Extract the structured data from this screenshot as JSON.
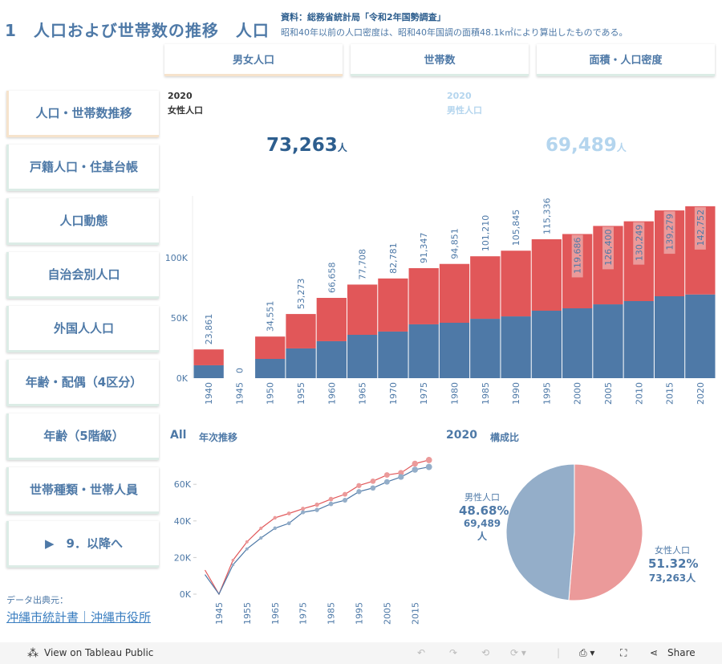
{
  "header": {
    "title": "1　人口および世帯数の推移　人口",
    "source": "資料：総務省統計局「令和2年国勢調査」",
    "note": "昭和40年以前の人口密度は、昭和40年国調の面積48.1k㎡により算出したものである。"
  },
  "tabs": [
    {
      "label": "男女人口",
      "active": true
    },
    {
      "label": "世帯数"
    },
    {
      "label": "面積・人口密度"
    }
  ],
  "nav": [
    {
      "label": "人口・世帯数推移",
      "active": true
    },
    {
      "label": "戸籍人口・住基台帳"
    },
    {
      "label": "人口動態"
    },
    {
      "label": "自治会別人口"
    },
    {
      "label": "外国人人口"
    },
    {
      "label": "年齢・配偶（4区分）"
    },
    {
      "label": "年齢（5階級）"
    },
    {
      "label": "世帯種類・世帯人員"
    },
    {
      "label": "▶　9．以降へ"
    }
  ],
  "kpi": {
    "female": {
      "year": "2020",
      "label": "女性人口",
      "value": "73,263",
      "unit": "人"
    },
    "male": {
      "year": "2020",
      "label": "男性人口",
      "value": "69,489",
      "unit": "人"
    }
  },
  "colors": {
    "female": "#e15759",
    "male": "#4e79a7",
    "female_light": "#eb9a9a",
    "male_light": "#94aec9",
    "accent": "#4e79a7"
  },
  "chart_data": [
    {
      "type": "bar",
      "stacked": true,
      "categories": [
        "1940",
        "1945",
        "1950",
        "1955",
        "1960",
        "1965",
        "1970",
        "1975",
        "1980",
        "1985",
        "1990",
        "1995",
        "2000",
        "2005",
        "2010",
        "2015",
        "2020"
      ],
      "series": [
        {
          "values": [
            10700,
            0,
            16000,
            24700,
            30700,
            36000,
            38700,
            44700,
            46000,
            49300,
            51300,
            56000,
            58000,
            61300,
            64000,
            68000,
            69489
          ],
          "color": "#4e79a7"
        },
        {
          "values": [
            13161,
            0,
            18551,
            28573,
            35958,
            41708,
            44081,
            46647,
            48851,
            51910,
            54545,
            59336,
            61686,
            65100,
            66249,
            71279,
            73263
          ],
          "color": "#e15759"
        }
      ],
      "totals": [
        "23,861",
        "0",
        "34,551",
        "53,273",
        "66,658",
        "77,708",
        "82,781",
        "91,347",
        "94,851",
        "101,210",
        "105,845",
        "115,336",
        "119,686",
        "126,400",
        "130,249",
        "139,279",
        "142,752"
      ],
      "yticks": [
        "0K",
        "50K",
        "100K"
      ],
      "ylim": [
        0,
        150000
      ]
    },
    {
      "type": "line",
      "title": "年次推移",
      "filter": "All",
      "x": [
        1940,
        1945,
        1950,
        1955,
        1960,
        1965,
        1970,
        1975,
        1980,
        1985,
        1990,
        1995,
        2000,
        2005,
        2010,
        2015,
        2020
      ],
      "xticks": [
        "1945",
        "1955",
        "1965",
        "1975",
        "1985",
        "1995",
        "2005",
        "2015"
      ],
      "series": [
        {
          "values": [
            13161,
            0,
            18551,
            28573,
            35958,
            41708,
            44081,
            46647,
            48851,
            51910,
            54545,
            59336,
            61686,
            65100,
            66249,
            71279,
            73263
          ],
          "color": "#e15759"
        },
        {
          "values": [
            10700,
            0,
            16000,
            24700,
            30700,
            36000,
            38700,
            44700,
            46000,
            49300,
            51300,
            56000,
            58000,
            61300,
            64000,
            68000,
            69489
          ],
          "color": "#4e79a7"
        }
      ],
      "yticks": [
        "0K",
        "20K",
        "40K",
        "60K"
      ],
      "ylim": [
        0,
        75000
      ]
    },
    {
      "type": "pie",
      "year": "2020",
      "title": "構成比",
      "slices": [
        {
          "name": "女性人口",
          "pct": "51.32%",
          "value": "73,263人",
          "share": 51.32,
          "color": "#eb9a9a"
        },
        {
          "name": "男性人口",
          "pct": "48.68%",
          "value": "69,489人",
          "share": 48.68,
          "color": "#94aec9"
        }
      ]
    }
  ],
  "credit": {
    "label": "データ出典元：",
    "link": "沖縄市統計書｜沖縄市役所"
  },
  "footer": {
    "view": "View on Tableau Public",
    "share": "Share"
  }
}
